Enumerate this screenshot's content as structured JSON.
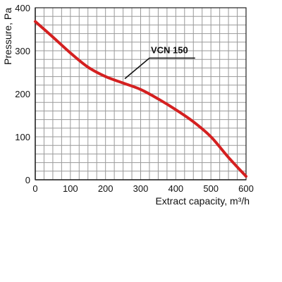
{
  "chart_data": {
    "type": "line",
    "title": "",
    "xlabel": "Extract capacity, m³/h",
    "ylabel": "Pressure, Pa",
    "xlim": [
      0,
      600
    ],
    "ylim": [
      0,
      400
    ],
    "x_ticks": [
      "0",
      "100",
      "200",
      "300",
      "400",
      "500",
      "600"
    ],
    "y_ticks": [
      "0",
      "100",
      "200",
      "300",
      "400"
    ],
    "grid": true,
    "series": [
      {
        "name": "VCN 150",
        "color": "#d42020",
        "x": [
          0,
          50,
          100,
          150,
          200,
          250,
          300,
          350,
          400,
          450,
          500,
          550,
          600
        ],
        "y": [
          368,
          332,
          295,
          262,
          240,
          225,
          210,
          188,
          163,
          135,
          100,
          52,
          8
        ]
      }
    ],
    "annotations": [
      {
        "text": "VCN 150",
        "series": "VCN 150"
      }
    ]
  }
}
